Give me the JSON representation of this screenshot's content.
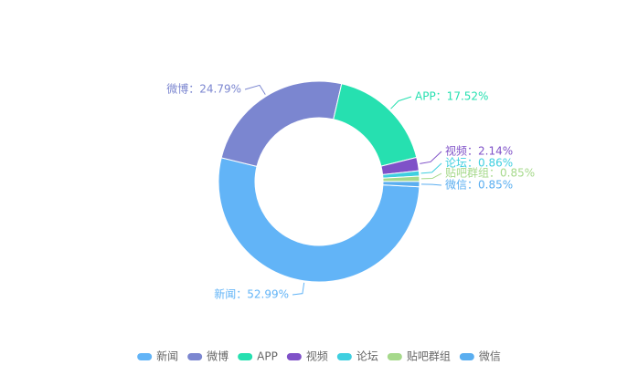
{
  "chart_data": {
    "type": "pie",
    "variant": "donut",
    "title": "",
    "legend_position": "bottom-center",
    "series": [
      {
        "name": "新闻",
        "value": 52.99,
        "label": "新闻：52.99%",
        "color": "#62b4f7"
      },
      {
        "name": "微博",
        "value": 24.79,
        "label": "微博：24.79%",
        "color": "#7b86d0"
      },
      {
        "name": "APP",
        "value": 17.52,
        "label": "APP：17.52%",
        "color": "#26e0b0"
      },
      {
        "name": "视频",
        "value": 2.14,
        "label": "视频：2.14%",
        "color": "#7f51c8"
      },
      {
        "name": "论坛",
        "value": 0.86,
        "label": "论坛：0.86%",
        "color": "#3fcfe0"
      },
      {
        "name": "贴吧群组",
        "value": 0.85,
        "label": "贴吧群组：0.85%",
        "color": "#a6d98b"
      },
      {
        "name": "微信",
        "value": 0.85,
        "label": "微信：0.85%",
        "color": "#5aaef0"
      }
    ]
  }
}
